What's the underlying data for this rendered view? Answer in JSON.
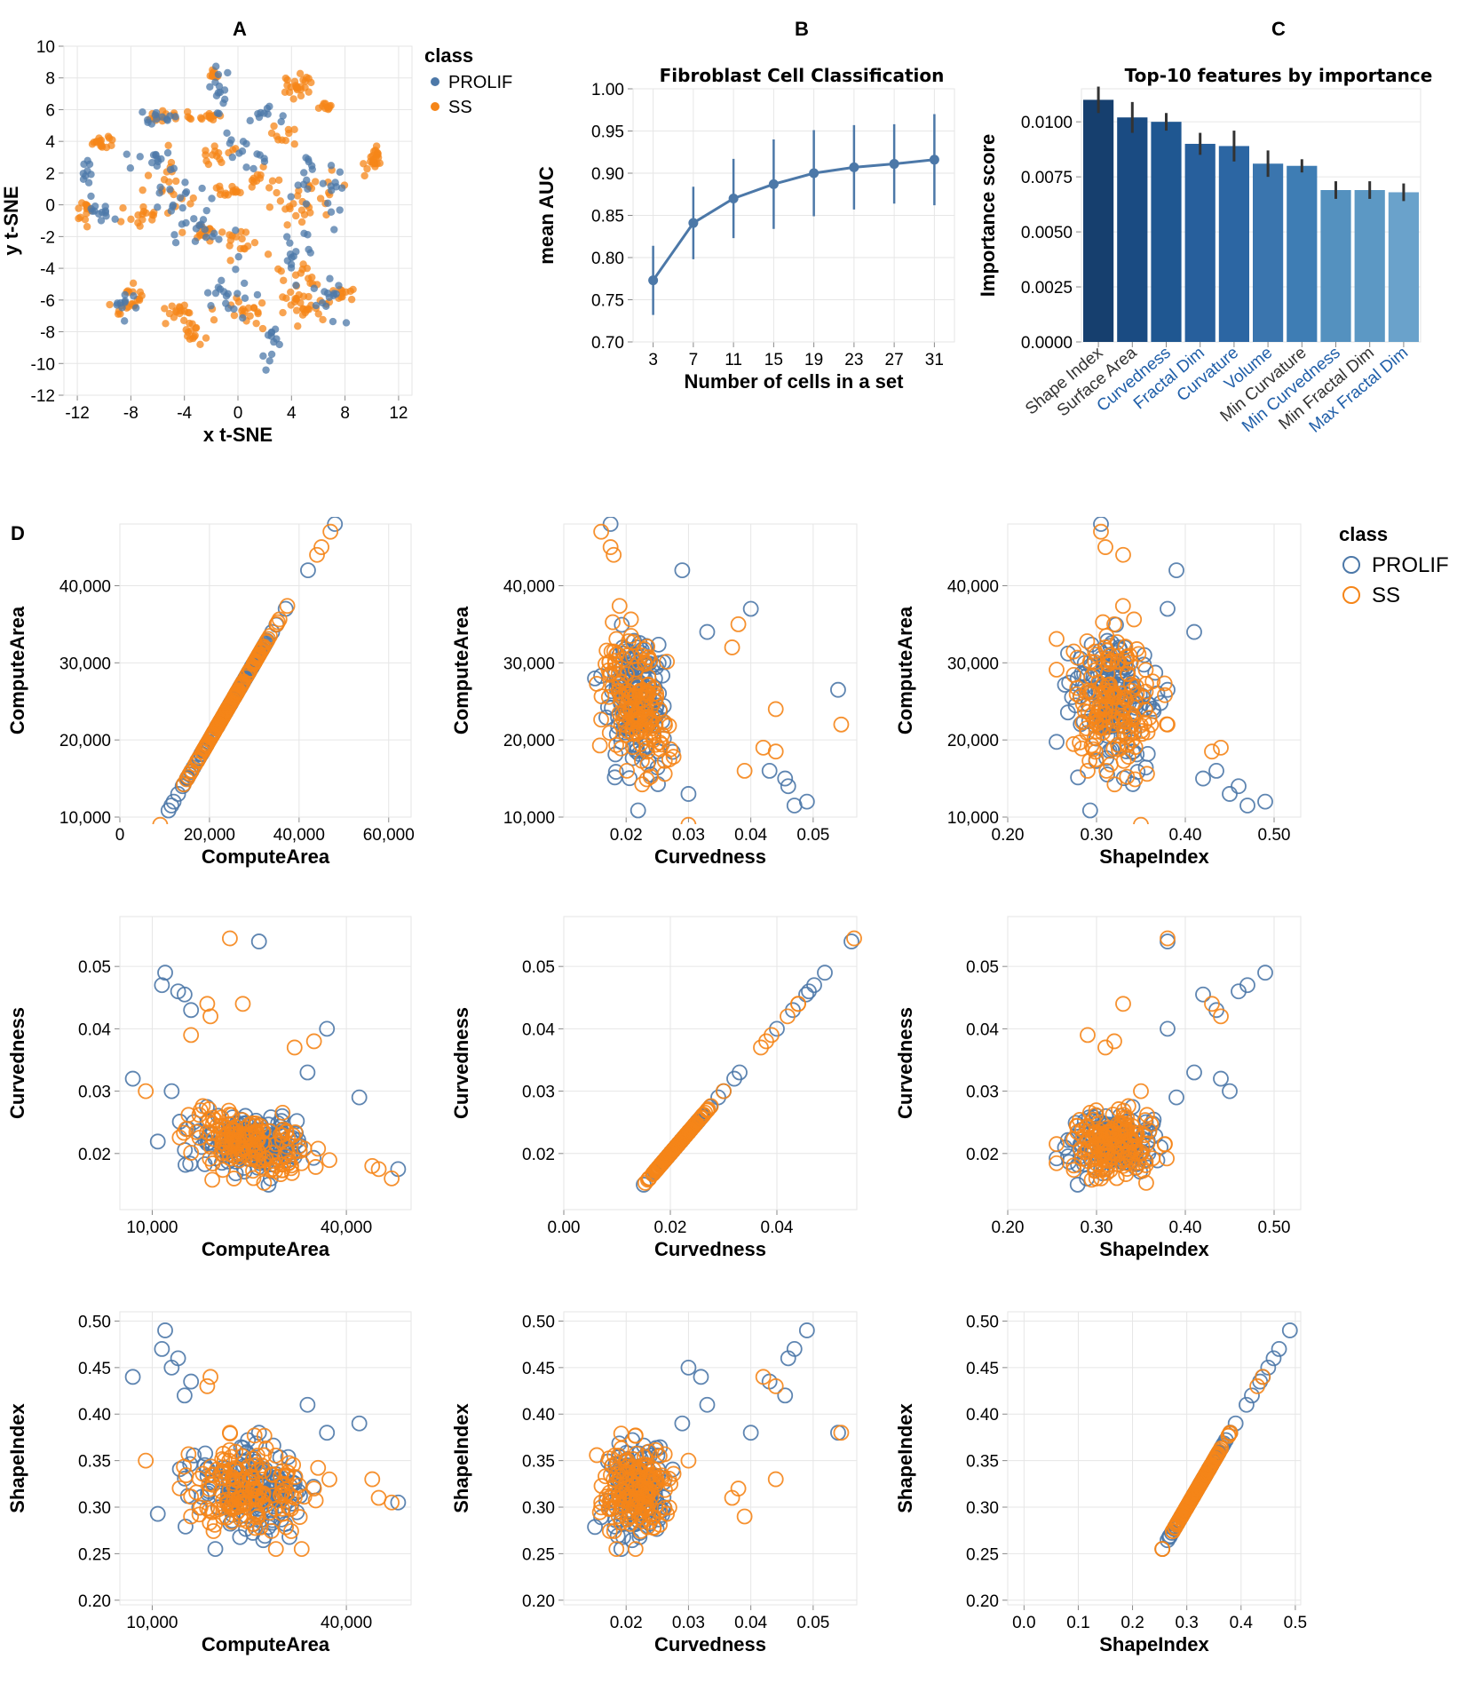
{
  "colors": {
    "prolif": "#4c78a8",
    "ss": "#f58518"
  },
  "panel_letters": {
    "a": "A",
    "b": "B",
    "c": "C",
    "d": "D"
  },
  "legend_a": {
    "title": "class",
    "items": [
      "PROLIF",
      "SS"
    ]
  },
  "legend_d": {
    "title": "class",
    "items": [
      "PROLIF",
      "SS"
    ]
  },
  "chart_data": [
    {
      "id": "A",
      "type": "scatter",
      "title": "",
      "xlabel": "x t-SNE",
      "ylabel": "y t-SNE",
      "xlim": [
        -13,
        13
      ],
      "ylim": [
        -12,
        10
      ],
      "xticks": [
        "-12",
        "-8",
        "-4",
        "0",
        "4",
        "8",
        "12"
      ],
      "xtick_values": [
        -12,
        -8,
        -4,
        0,
        4,
        8,
        12
      ],
      "yticks": [
        "-12",
        "-10",
        "-8",
        "-6",
        "-4",
        "-2",
        "0",
        "2",
        "4",
        "6",
        "8",
        "10"
      ],
      "ytick_values": [
        -12,
        -10,
        -8,
        -6,
        -4,
        -2,
        0,
        2,
        4,
        6,
        8,
        10
      ],
      "series": [
        {
          "name": "PROLIF",
          "clusters": [
            [
              -11.2,
              1.5,
              0.5,
              1.2,
              10
            ],
            [
              -10.2,
              -0.5,
              0.6,
              0.6,
              12
            ],
            [
              -6.5,
              2.5,
              1.2,
              1.0,
              14
            ],
            [
              -6.2,
              5.5,
              1.0,
              0.4,
              12
            ],
            [
              -4.5,
              0.5,
              1.5,
              1.5,
              16
            ],
            [
              -1.5,
              7.0,
              0.4,
              1.5,
              14
            ],
            [
              -1.0,
              -5.5,
              1.5,
              1.5,
              18
            ],
            [
              0.5,
              3.5,
              1.5,
              1.5,
              14
            ],
            [
              2.5,
              -8.5,
              0.6,
              1.5,
              12
            ],
            [
              4.5,
              -2.5,
              1.0,
              1.5,
              14
            ],
            [
              6.5,
              -6.0,
              1.0,
              1.2,
              14
            ],
            [
              5.5,
              2.0,
              1.5,
              1.5,
              14
            ],
            [
              -2.5,
              -1.5,
              2.0,
              1.0,
              16
            ],
            [
              7.2,
              0.5,
              0.5,
              1.8,
              10
            ],
            [
              -8.5,
              -6.0,
              0.8,
              0.8,
              10
            ],
            [
              1.8,
              5.5,
              1.0,
              0.5,
              10
            ]
          ]
        },
        {
          "name": "SS",
          "clusters": [
            [
              -10.2,
              4.0,
              0.8,
              0.4,
              16
            ],
            [
              -11.3,
              -0.5,
              0.6,
              0.8,
              14
            ],
            [
              -5.5,
              5.6,
              1.5,
              0.3,
              20
            ],
            [
              -2.0,
              5.6,
              0.8,
              0.3,
              12
            ],
            [
              -2.0,
              8.2,
              0.3,
              0.3,
              12
            ],
            [
              -1.5,
              3.0,
              1.0,
              0.6,
              14
            ],
            [
              4.5,
              7.5,
              1.0,
              0.6,
              24
            ],
            [
              6.5,
              6.2,
              0.5,
              0.2,
              10
            ],
            [
              10.2,
              3.0,
              0.6,
              0.8,
              22
            ],
            [
              -5.0,
              1.0,
              1.3,
              1.2,
              20
            ],
            [
              -7.2,
              -0.8,
              1.0,
              0.6,
              14
            ],
            [
              -0.5,
              0.8,
              1.0,
              0.3,
              14
            ],
            [
              -2.2,
              -1.8,
              1.2,
              0.4,
              16
            ],
            [
              0.5,
              -2.5,
              1.0,
              1.0,
              14
            ],
            [
              4.0,
              0.0,
              1.0,
              1.0,
              16
            ],
            [
              4.5,
              -4.8,
              0.8,
              1.0,
              20
            ],
            [
              -8.2,
              -6.0,
              1.0,
              0.8,
              22
            ],
            [
              -4.5,
              -6.5,
              1.0,
              0.8,
              16
            ],
            [
              -3.0,
              -8.0,
              1.0,
              0.8,
              16
            ],
            [
              0.5,
              -7.0,
              1.2,
              1.0,
              18
            ],
            [
              5.0,
              -6.5,
              1.0,
              0.8,
              22
            ],
            [
              7.8,
              -5.5,
              0.8,
              0.5,
              12
            ],
            [
              2.0,
              1.5,
              1.0,
              0.6,
              12
            ],
            [
              3.5,
              4.5,
              1.0,
              0.5,
              10
            ],
            [
              6.0,
              1.0,
              1.2,
              1.5,
              14
            ]
          ]
        }
      ]
    },
    {
      "id": "B",
      "type": "line",
      "title": "Fibroblast Cell Classification",
      "xlabel": "Number of cells in a set",
      "ylabel": "mean AUC",
      "x": [
        3,
        7,
        11,
        15,
        19,
        23,
        27,
        31
      ],
      "xticks": [
        "3",
        "7",
        "11",
        "15",
        "19",
        "23",
        "27",
        "31"
      ],
      "y": [
        0.773,
        0.841,
        0.87,
        0.887,
        0.9,
        0.907,
        0.911,
        0.916
      ],
      "err": [
        0.041,
        0.043,
        0.047,
        0.053,
        0.051,
        0.05,
        0.047,
        0.054
      ],
      "ylim": [
        0.7,
        1.0
      ],
      "yticks": [
        "0.70",
        "0.75",
        "0.80",
        "0.85",
        "0.90",
        "0.95",
        "1.00"
      ],
      "ytick_values": [
        0.7,
        0.75,
        0.8,
        0.85,
        0.9,
        0.95,
        1.0
      ]
    },
    {
      "id": "C",
      "type": "bar",
      "title": "Top-10 features by importance",
      "xlabel": "",
      "ylabel": "Importance score",
      "categories": [
        "Shape Index",
        "Surface Area",
        "Curvedness",
        "Fractal Dim",
        "Curvature",
        "Volume",
        "Min Curvature",
        "Min Curvedness",
        "Min Fractal Dim",
        "Max Fractal Dim"
      ],
      "category_label_colors": [
        "#333333",
        "#333333",
        "#1f5ea8",
        "#1f5ea8",
        "#1f5ea8",
        "#1f5ea8",
        "#333333",
        "#1f5ea8",
        "#333333",
        "#1f5ea8"
      ],
      "values": [
        0.011,
        0.0102,
        0.01,
        0.009,
        0.0089,
        0.0081,
        0.008,
        0.0069,
        0.0069,
        0.0068
      ],
      "err": [
        0.0006,
        0.0007,
        0.0004,
        0.0005,
        0.0007,
        0.0006,
        0.0003,
        0.0004,
        0.0004,
        0.0004
      ],
      "bar_colors": [
        "#163f6e",
        "#1a4b82",
        "#1f5791",
        "#275f9c",
        "#2c66a3",
        "#3a75ae",
        "#3e7db4",
        "#5491bf",
        "#5c98c4",
        "#6aa2cb"
      ],
      "ylim": [
        0,
        0.0115
      ],
      "yticks": [
        "0.0000",
        "0.0025",
        "0.0050",
        "0.0075",
        "0.0100"
      ],
      "ytick_values": [
        0,
        0.0025,
        0.005,
        0.0075,
        0.01
      ]
    },
    {
      "id": "D",
      "type": "scatter_matrix",
      "variables": [
        "ComputeArea",
        "Curvedness",
        "ShapeIndex"
      ],
      "axes": {
        "ComputeArea": {
          "lim": [
            0,
            65000
          ],
          "ticks": [
            "0",
            "20,000",
            "40,000",
            "60,000"
          ],
          "tick_values": [
            0,
            20000,
            40000,
            60000
          ]
        },
        "ComputeArea_short": {
          "lim": [
            5000,
            50000
          ],
          "ticks": [
            "10,000",
            "40,000"
          ],
          "tick_values": [
            10000,
            40000
          ]
        },
        "ComputeArea_y": {
          "lim": [
            10000,
            48000
          ],
          "ticks": [
            "10,000",
            "20,000",
            "30,000",
            "40,000"
          ],
          "tick_values": [
            10000,
            20000,
            30000,
            40000
          ]
        },
        "Curvedness_x": {
          "lim": [
            0.01,
            0.057
          ],
          "ticks": [
            "0.02",
            "0.03",
            "0.04",
            "0.05"
          ],
          "tick_values": [
            0.02,
            0.03,
            0.04,
            0.05
          ]
        },
        "Curvedness_x0": {
          "lim": [
            0.0,
            0.055
          ],
          "ticks": [
            "0.00",
            "0.02",
            "0.04"
          ],
          "tick_values": [
            0.0,
            0.02,
            0.04
          ]
        },
        "Curvedness_y": {
          "lim": [
            0.011,
            0.058
          ],
          "ticks": [
            "0.02",
            "0.03",
            "0.04",
            "0.05"
          ],
          "tick_values": [
            0.02,
            0.03,
            0.04,
            0.05
          ]
        },
        "ShapeIndex_x": {
          "lim": [
            0.2,
            0.53
          ],
          "ticks": [
            "0.20",
            "0.30",
            "0.40",
            "0.50"
          ],
          "tick_values": [
            0.2,
            0.3,
            0.4,
            0.5
          ]
        },
        "ShapeIndex_x0": {
          "lim": [
            -0.03,
            0.51
          ],
          "ticks": [
            "0.0",
            "0.1",
            "0.2",
            "0.3",
            "0.4",
            "0.5"
          ],
          "tick_values": [
            0,
            0.1,
            0.2,
            0.3,
            0.4,
            0.5
          ]
        },
        "ShapeIndex_y": {
          "lim": [
            0.195,
            0.51
          ],
          "ticks": [
            "0.20",
            "0.25",
            "0.30",
            "0.35",
            "0.40",
            "0.45",
            "0.50"
          ],
          "tick_values": [
            0.2,
            0.25,
            0.3,
            0.35,
            0.4,
            0.45,
            0.5
          ]
        }
      },
      "typical": {
        "ComputeArea": 25000,
        "Curvedness": 0.0215,
        "ShapeIndex": 0.318
      },
      "spread": {
        "ComputeArea": 4500,
        "Curvedness": 0.0028,
        "ShapeIndex": 0.025
      },
      "outliers_prolif": [
        [
          48000,
          0.0175,
          0.305
        ],
        [
          12000,
          0.049,
          0.49
        ],
        [
          11500,
          0.047,
          0.47
        ],
        [
          14000,
          0.046,
          0.46
        ],
        [
          7000,
          0.032,
          0.44
        ],
        [
          15000,
          0.0455,
          0.42
        ],
        [
          37000,
          0.04,
          0.38
        ],
        [
          42000,
          0.029,
          0.39
        ],
        [
          16000,
          0.043,
          0.435
        ],
        [
          13000,
          0.03,
          0.45
        ],
        [
          26500,
          0.054,
          0.38
        ],
        [
          34000,
          0.033,
          0.41
        ]
      ],
      "outliers_ss": [
        [
          45000,
          0.0175,
          0.31
        ],
        [
          22000,
          0.0545,
          0.38
        ],
        [
          47000,
          0.016,
          0.305
        ],
        [
          35000,
          0.038,
          0.32
        ],
        [
          18500,
          0.044,
          0.43
        ],
        [
          19000,
          0.042,
          0.44
        ],
        [
          44000,
          0.018,
          0.33
        ],
        [
          9000,
          0.03,
          0.35
        ],
        [
          32000,
          0.037,
          0.31
        ],
        [
          16000,
          0.039,
          0.29
        ],
        [
          24000,
          0.044,
          0.33
        ]
      ],
      "x_titles": [
        "ComputeArea",
        "Curvedness",
        "ShapeIndex"
      ],
      "y_titles": [
        "ComputeArea",
        "Curvedness",
        "ShapeIndex"
      ]
    }
  ]
}
